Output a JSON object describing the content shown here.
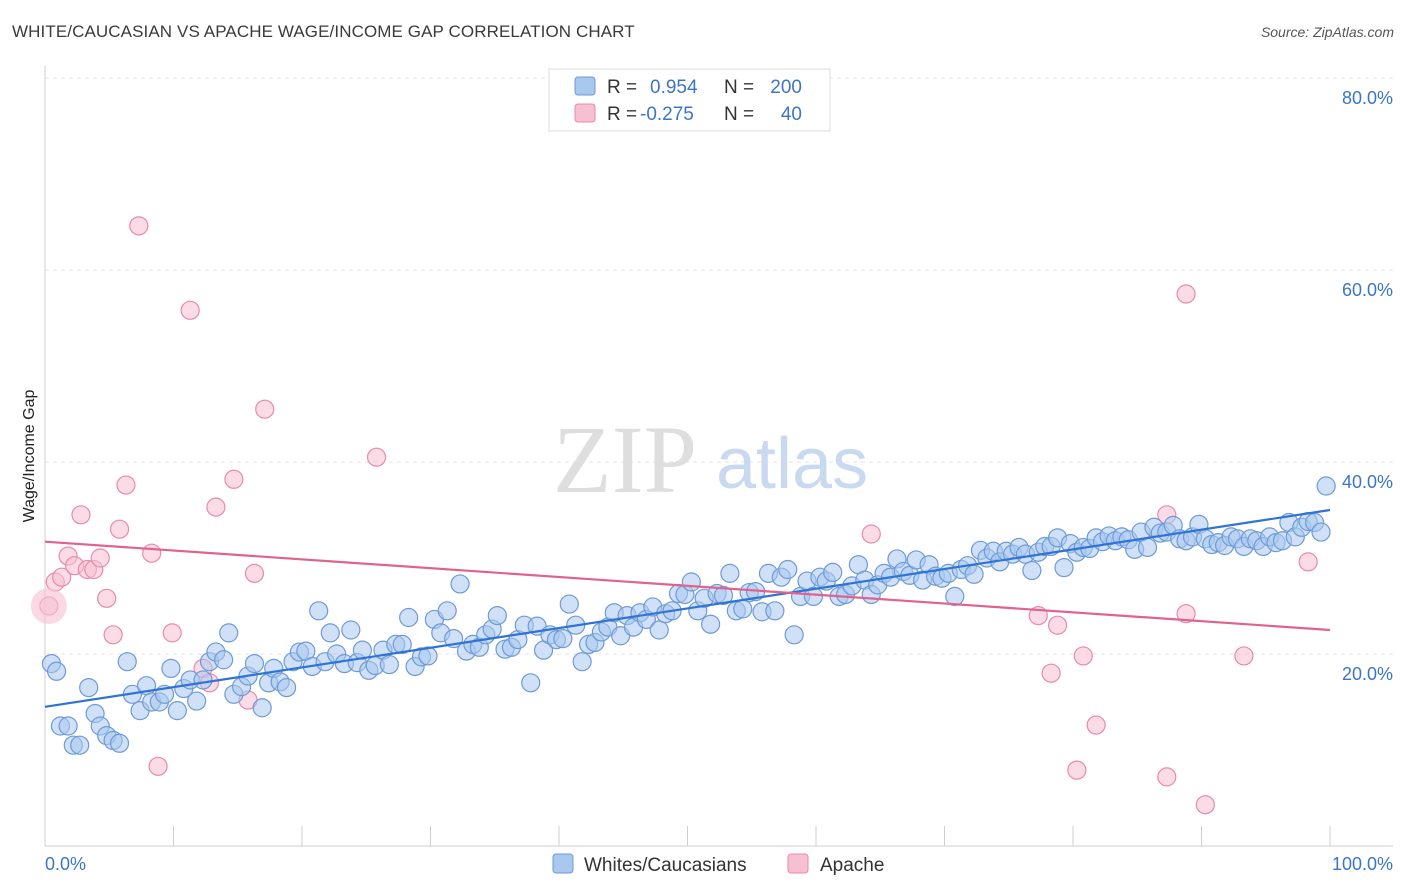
{
  "header": {
    "title": "WHITE/CAUCASIAN VS APACHE WAGE/INCOME GAP CORRELATION CHART",
    "source": "Source: ZipAtlas.com"
  },
  "watermark": {
    "zip": "ZIP",
    "atlas": "atlas"
  },
  "legend_top": [
    {
      "r_label": "R =",
      "r_value": "0.954",
      "n_label": "N =",
      "n_value": "200",
      "color": "#a9c8f0",
      "stroke": "#6d9ad6"
    },
    {
      "r_label": "R =",
      "r_value": "-0.275",
      "n_label": "N =",
      "n_value": "40",
      "color": "#f7c0d2",
      "stroke": "#e88aa8"
    }
  ],
  "colors": {
    "blue_fill": "#a9c8f0",
    "blue_stroke": "#6d9ad6",
    "blue_line": "#2f73d6",
    "pink_fill": "#f7c0d2",
    "pink_stroke": "#e88aa8",
    "pink_line": "#e0628e",
    "accent_text": "#3b76c4"
  },
  "chart_data": {
    "type": "scatter",
    "title": "WHITE/CAUCASIAN VS APACHE WAGE/INCOME GAP CORRELATION CHART",
    "xlabel": "",
    "ylabel": "Wage/Income Gap",
    "xlim": [
      0,
      100
    ],
    "ylim": [
      0,
      80
    ],
    "x_ticks": [
      "0.0%",
      "100.0%"
    ],
    "y_ticks": [
      {
        "value": 20,
        "label": "20.0%"
      },
      {
        "value": 40,
        "label": "40.0%"
      },
      {
        "value": 60,
        "label": "60.0%"
      },
      {
        "value": 80,
        "label": "80.0%"
      }
    ],
    "grid": true,
    "legend_position": "bottom",
    "series": [
      {
        "name": "Whites/Caucasians",
        "color": "#a9c8f0",
        "trend": {
          "x": [
            0,
            100
          ],
          "y": [
            14.5,
            35.0
          ]
        },
        "points": [
          [
            0.5,
            19.0
          ],
          [
            0.9,
            18.2
          ],
          [
            1.2,
            12.5
          ],
          [
            1.8,
            12.5
          ],
          [
            2.2,
            10.5
          ],
          [
            2.7,
            10.5
          ],
          [
            3.4,
            16.5
          ],
          [
            3.9,
            13.8
          ],
          [
            4.3,
            12.5
          ],
          [
            4.8,
            11.5
          ],
          [
            5.3,
            11.0
          ],
          [
            5.8,
            10.7
          ],
          [
            6.4,
            19.2
          ],
          [
            6.8,
            15.8
          ],
          [
            7.4,
            14.1
          ],
          [
            7.9,
            16.7
          ],
          [
            8.3,
            15.0
          ],
          [
            8.9,
            15.0
          ],
          [
            9.3,
            15.8
          ],
          [
            9.8,
            18.5
          ],
          [
            10.3,
            14.1
          ],
          [
            10.8,
            16.4
          ],
          [
            11.3,
            17.3
          ],
          [
            11.8,
            15.1
          ],
          [
            12.3,
            17.3
          ],
          [
            12.8,
            19.2
          ],
          [
            13.3,
            20.2
          ],
          [
            13.9,
            19.4
          ],
          [
            14.3,
            22.2
          ],
          [
            14.7,
            15.8
          ],
          [
            15.3,
            16.6
          ],
          [
            15.8,
            17.7
          ],
          [
            16.3,
            19.0
          ],
          [
            16.9,
            14.4
          ],
          [
            17.4,
            17.0
          ],
          [
            17.8,
            18.5
          ],
          [
            18.3,
            17.1
          ],
          [
            18.8,
            16.5
          ],
          [
            19.3,
            19.2
          ],
          [
            19.8,
            20.2
          ],
          [
            20.3,
            20.3
          ],
          [
            20.8,
            18.7
          ],
          [
            21.3,
            24.5
          ],
          [
            21.8,
            19.2
          ],
          [
            22.2,
            22.2
          ],
          [
            22.7,
            20.0
          ],
          [
            23.3,
            19.0
          ],
          [
            23.8,
            22.5
          ],
          [
            24.3,
            19.1
          ],
          [
            24.7,
            20.4
          ],
          [
            25.2,
            18.3
          ],
          [
            25.7,
            18.8
          ],
          [
            26.3,
            20.4
          ],
          [
            26.8,
            18.9
          ],
          [
            27.3,
            21.0
          ],
          [
            27.8,
            21.0
          ],
          [
            28.3,
            23.8
          ],
          [
            28.8,
            18.7
          ],
          [
            29.3,
            19.7
          ],
          [
            29.8,
            19.8
          ],
          [
            30.3,
            23.6
          ],
          [
            30.8,
            22.2
          ],
          [
            31.3,
            24.5
          ],
          [
            31.8,
            21.6
          ],
          [
            32.3,
            27.3
          ],
          [
            32.8,
            20.3
          ],
          [
            33.3,
            21.0
          ],
          [
            33.8,
            20.7
          ],
          [
            34.3,
            22.0
          ],
          [
            34.8,
            22.6
          ],
          [
            35.2,
            24.0
          ],
          [
            35.8,
            20.5
          ],
          [
            36.3,
            20.7
          ],
          [
            36.8,
            21.5
          ],
          [
            37.3,
            23.0
          ],
          [
            37.8,
            17.0
          ],
          [
            38.3,
            22.9
          ],
          [
            38.8,
            20.4
          ],
          [
            39.3,
            22.0
          ],
          [
            39.8,
            21.5
          ],
          [
            40.3,
            21.6
          ],
          [
            40.8,
            25.2
          ],
          [
            41.3,
            23.0
          ],
          [
            41.8,
            19.2
          ],
          [
            42.3,
            21.0
          ],
          [
            42.8,
            21.2
          ],
          [
            43.3,
            22.3
          ],
          [
            43.8,
            22.8
          ],
          [
            44.3,
            24.3
          ],
          [
            44.8,
            21.9
          ],
          [
            45.3,
            24.0
          ],
          [
            45.8,
            22.8
          ],
          [
            46.3,
            24.3
          ],
          [
            46.8,
            23.6
          ],
          [
            47.3,
            24.9
          ],
          [
            47.8,
            22.5
          ],
          [
            48.3,
            24.2
          ],
          [
            48.8,
            24.5
          ],
          [
            49.3,
            26.3
          ],
          [
            49.8,
            26.2
          ],
          [
            50.3,
            27.5
          ],
          [
            50.8,
            24.5
          ],
          [
            51.3,
            25.8
          ],
          [
            51.8,
            23.1
          ],
          [
            52.3,
            26.3
          ],
          [
            52.8,
            26.1
          ],
          [
            53.3,
            28.4
          ],
          [
            53.8,
            24.5
          ],
          [
            54.3,
            24.7
          ],
          [
            54.8,
            26.4
          ],
          [
            55.3,
            26.5
          ],
          [
            55.8,
            24.4
          ],
          [
            56.3,
            28.4
          ],
          [
            56.8,
            24.5
          ],
          [
            57.3,
            28.0
          ],
          [
            57.8,
            28.8
          ],
          [
            58.3,
            22.0
          ],
          [
            58.8,
            26.0
          ],
          [
            59.3,
            27.6
          ],
          [
            59.8,
            26.0
          ],
          [
            60.3,
            28.0
          ],
          [
            60.8,
            27.6
          ],
          [
            61.3,
            28.5
          ],
          [
            61.8,
            26.0
          ],
          [
            62.3,
            26.2
          ],
          [
            62.8,
            27.1
          ],
          [
            63.3,
            29.3
          ],
          [
            63.8,
            27.7
          ],
          [
            64.3,
            26.2
          ],
          [
            64.8,
            27.2
          ],
          [
            65.3,
            28.4
          ],
          [
            65.8,
            28.0
          ],
          [
            66.3,
            29.9
          ],
          [
            66.8,
            28.6
          ],
          [
            67.3,
            28.2
          ],
          [
            67.8,
            29.8
          ],
          [
            68.3,
            27.7
          ],
          [
            68.8,
            29.3
          ],
          [
            69.3,
            28.1
          ],
          [
            69.8,
            27.9
          ],
          [
            70.3,
            28.4
          ],
          [
            70.8,
            26.0
          ],
          [
            71.3,
            28.8
          ],
          [
            71.8,
            29.2
          ],
          [
            72.3,
            28.3
          ],
          [
            72.8,
            30.8
          ],
          [
            73.3,
            30.0
          ],
          [
            73.8,
            30.7
          ],
          [
            74.3,
            29.6
          ],
          [
            74.8,
            30.7
          ],
          [
            75.3,
            30.4
          ],
          [
            75.8,
            31.1
          ],
          [
            76.3,
            30.4
          ],
          [
            76.8,
            28.7
          ],
          [
            77.3,
            30.6
          ],
          [
            77.8,
            31.2
          ],
          [
            78.3,
            31.2
          ],
          [
            78.8,
            32.1
          ],
          [
            79.3,
            29.0
          ],
          [
            79.8,
            31.5
          ],
          [
            80.3,
            30.6
          ],
          [
            80.8,
            31.1
          ],
          [
            81.3,
            31.0
          ],
          [
            81.8,
            32.1
          ],
          [
            82.3,
            31.7
          ],
          [
            82.8,
            32.3
          ],
          [
            83.3,
            31.8
          ],
          [
            83.8,
            32.2
          ],
          [
            84.3,
            31.9
          ],
          [
            84.8,
            30.9
          ],
          [
            85.3,
            32.7
          ],
          [
            85.8,
            31.1
          ],
          [
            86.3,
            33.2
          ],
          [
            86.8,
            32.6
          ],
          [
            87.3,
            32.7
          ],
          [
            87.8,
            33.4
          ],
          [
            88.3,
            32.0
          ],
          [
            88.8,
            31.8
          ],
          [
            89.3,
            32.2
          ],
          [
            89.8,
            33.5
          ],
          [
            90.3,
            32.0
          ],
          [
            90.8,
            31.4
          ],
          [
            91.3,
            31.6
          ],
          [
            91.8,
            31.3
          ],
          [
            92.3,
            32.2
          ],
          [
            92.8,
            32.0
          ],
          [
            93.3,
            31.2
          ],
          [
            93.8,
            32.0
          ],
          [
            94.3,
            31.8
          ],
          [
            94.8,
            31.2
          ],
          [
            95.3,
            32.2
          ],
          [
            95.8,
            31.6
          ],
          [
            96.3,
            31.8
          ],
          [
            96.8,
            33.7
          ],
          [
            97.3,
            32.2
          ],
          [
            97.8,
            33.2
          ],
          [
            98.3,
            33.8
          ],
          [
            98.8,
            33.7
          ],
          [
            99.3,
            32.7
          ],
          [
            99.7,
            37.5
          ]
        ]
      },
      {
        "name": "Apache",
        "color": "#f7c0d2",
        "trend": {
          "x": [
            0,
            100
          ],
          "y": [
            31.7,
            22.5
          ]
        },
        "points": [
          [
            0.3,
            25.0
          ],
          [
            0.8,
            27.5
          ],
          [
            1.3,
            28.0
          ],
          [
            1.8,
            30.2
          ],
          [
            2.3,
            29.2
          ],
          [
            2.8,
            34.5
          ],
          [
            3.3,
            28.8
          ],
          [
            3.8,
            28.8
          ],
          [
            4.3,
            30.0
          ],
          [
            4.8,
            25.8
          ],
          [
            5.3,
            22.0
          ],
          [
            5.8,
            33.0
          ],
          [
            6.3,
            37.6
          ],
          [
            7.3,
            64.6
          ],
          [
            8.3,
            30.5
          ],
          [
            8.8,
            8.3
          ],
          [
            9.9,
            22.2
          ],
          [
            11.3,
            55.8
          ],
          [
            12.3,
            18.5
          ],
          [
            12.8,
            17.0
          ],
          [
            13.3,
            35.3
          ],
          [
            14.7,
            38.2
          ],
          [
            15.8,
            15.2
          ],
          [
            16.3,
            28.4
          ],
          [
            17.1,
            45.5
          ],
          [
            25.8,
            40.5
          ],
          [
            64.3,
            32.5
          ],
          [
            77.3,
            24.0
          ],
          [
            78.3,
            18.0
          ],
          [
            78.8,
            23.0
          ],
          [
            80.3,
            7.9
          ],
          [
            80.8,
            19.8
          ],
          [
            81.8,
            12.6
          ],
          [
            87.3,
            7.2
          ],
          [
            87.3,
            34.5
          ],
          [
            88.8,
            24.2
          ],
          [
            88.8,
            57.5
          ],
          [
            90.3,
            4.3
          ],
          [
            93.3,
            19.8
          ],
          [
            98.3,
            29.6
          ]
        ]
      }
    ]
  },
  "legend_bottom": [
    {
      "label": "Whites/Caucasians",
      "color": "#a9c8f0",
      "stroke": "#6d9ad6"
    },
    {
      "label": "Apache",
      "color": "#f7c0d2",
      "stroke": "#e88aa8"
    }
  ]
}
